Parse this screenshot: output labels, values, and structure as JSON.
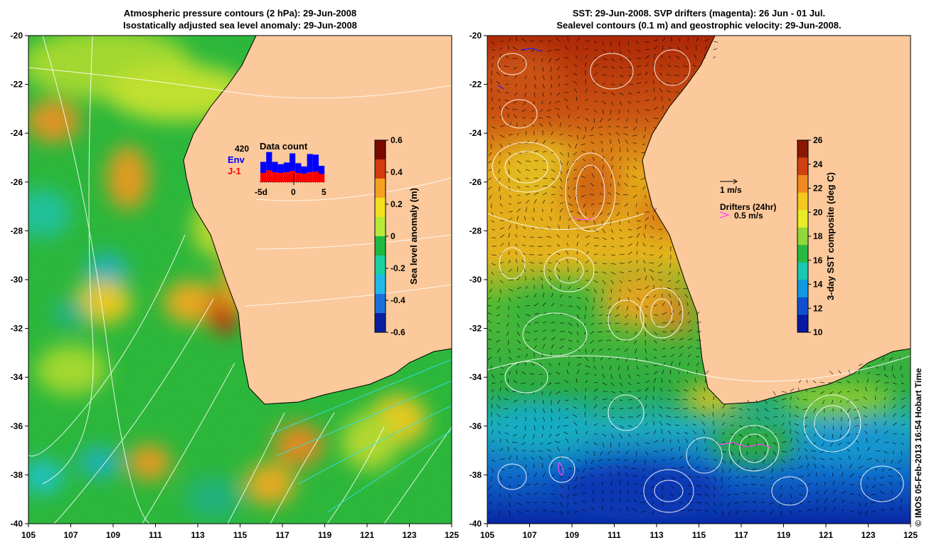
{
  "left_panel": {
    "title_line1": "Atmospheric pressure contours (2 hPa): 29-Jun-2008",
    "title_line2": "Isostatically adjusted sea level anomaly: 29-Jun-2008",
    "colorbar": {
      "label": "Sea level anomaly (m)",
      "ticks": [
        "0.6",
        "0.4",
        "0.2",
        "0",
        "-0.2",
        "-0.4",
        "-0.6"
      ],
      "colors": [
        "#7a0a00",
        "#d23a10",
        "#f5a020",
        "#f2e020",
        "#b8e838",
        "#20b840",
        "#18d0a0",
        "#20b8e8",
        "#1a70d8",
        "#0820a0"
      ]
    },
    "inset": {
      "count": "420",
      "env_label": "Env",
      "j1_label": "J-1",
      "title": "Data count",
      "xticks": [
        "-5d",
        "0",
        "5"
      ],
      "env_color": "#0000ff",
      "j1_color": "#ff0000",
      "bars": [
        {
          "total": 0.62,
          "red": 0.28
        },
        {
          "total": 0.92,
          "red": 0.36
        },
        {
          "total": 0.62,
          "red": 0.3
        },
        {
          "total": 0.55,
          "red": 0.28
        },
        {
          "total": 0.6,
          "red": 0.3
        },
        {
          "total": 0.88,
          "red": 0.34
        },
        {
          "total": 0.58,
          "red": 0.28
        },
        {
          "total": 0.48,
          "red": 0.26
        },
        {
          "total": 0.86,
          "red": 0.3
        },
        {
          "total": 0.84,
          "red": 0.32
        },
        {
          "total": 0.5,
          "red": 0.25
        }
      ]
    }
  },
  "right_panel": {
    "title_line1": "SST: 29-Jun-2008. SVP drifters (magenta): 26 Jun - 01 Jul.",
    "title_line2": "Sealevel contours (0.1 m) and geostrophic velocity: 29-Jun-2008.",
    "colorbar": {
      "label": "3-day SST composite (deg C)",
      "ticks": [
        "26",
        "24",
        "22",
        "20",
        "18",
        "16",
        "14",
        "12",
        "10"
      ],
      "colors": [
        "#8a1800",
        "#d04010",
        "#f08a20",
        "#f5c820",
        "#e8ec28",
        "#90d838",
        "#28b840",
        "#18c8b0",
        "#1098e0",
        "#1050d0",
        "#0818a0"
      ]
    },
    "velocity_legend": "1 m/s",
    "drifter_legend_title": "Drifters (24hr)",
    "drifter_legend_value": "0.5 m/s",
    "drifter_color": "#ff40ff"
  },
  "axes": {
    "lon_ticks": [
      "105",
      "107",
      "109",
      "111",
      "113",
      "115",
      "117",
      "119",
      "121",
      "123",
      "125"
    ],
    "lat_ticks": [
      "-20",
      "-22",
      "-24",
      "-26",
      "-28",
      "-30",
      "-32",
      "-34",
      "-36",
      "-38",
      "-40"
    ]
  },
  "land_color": "#fbc99b",
  "credit": "© IMOS 05-Feb-2013 16:54 Hobart Time"
}
